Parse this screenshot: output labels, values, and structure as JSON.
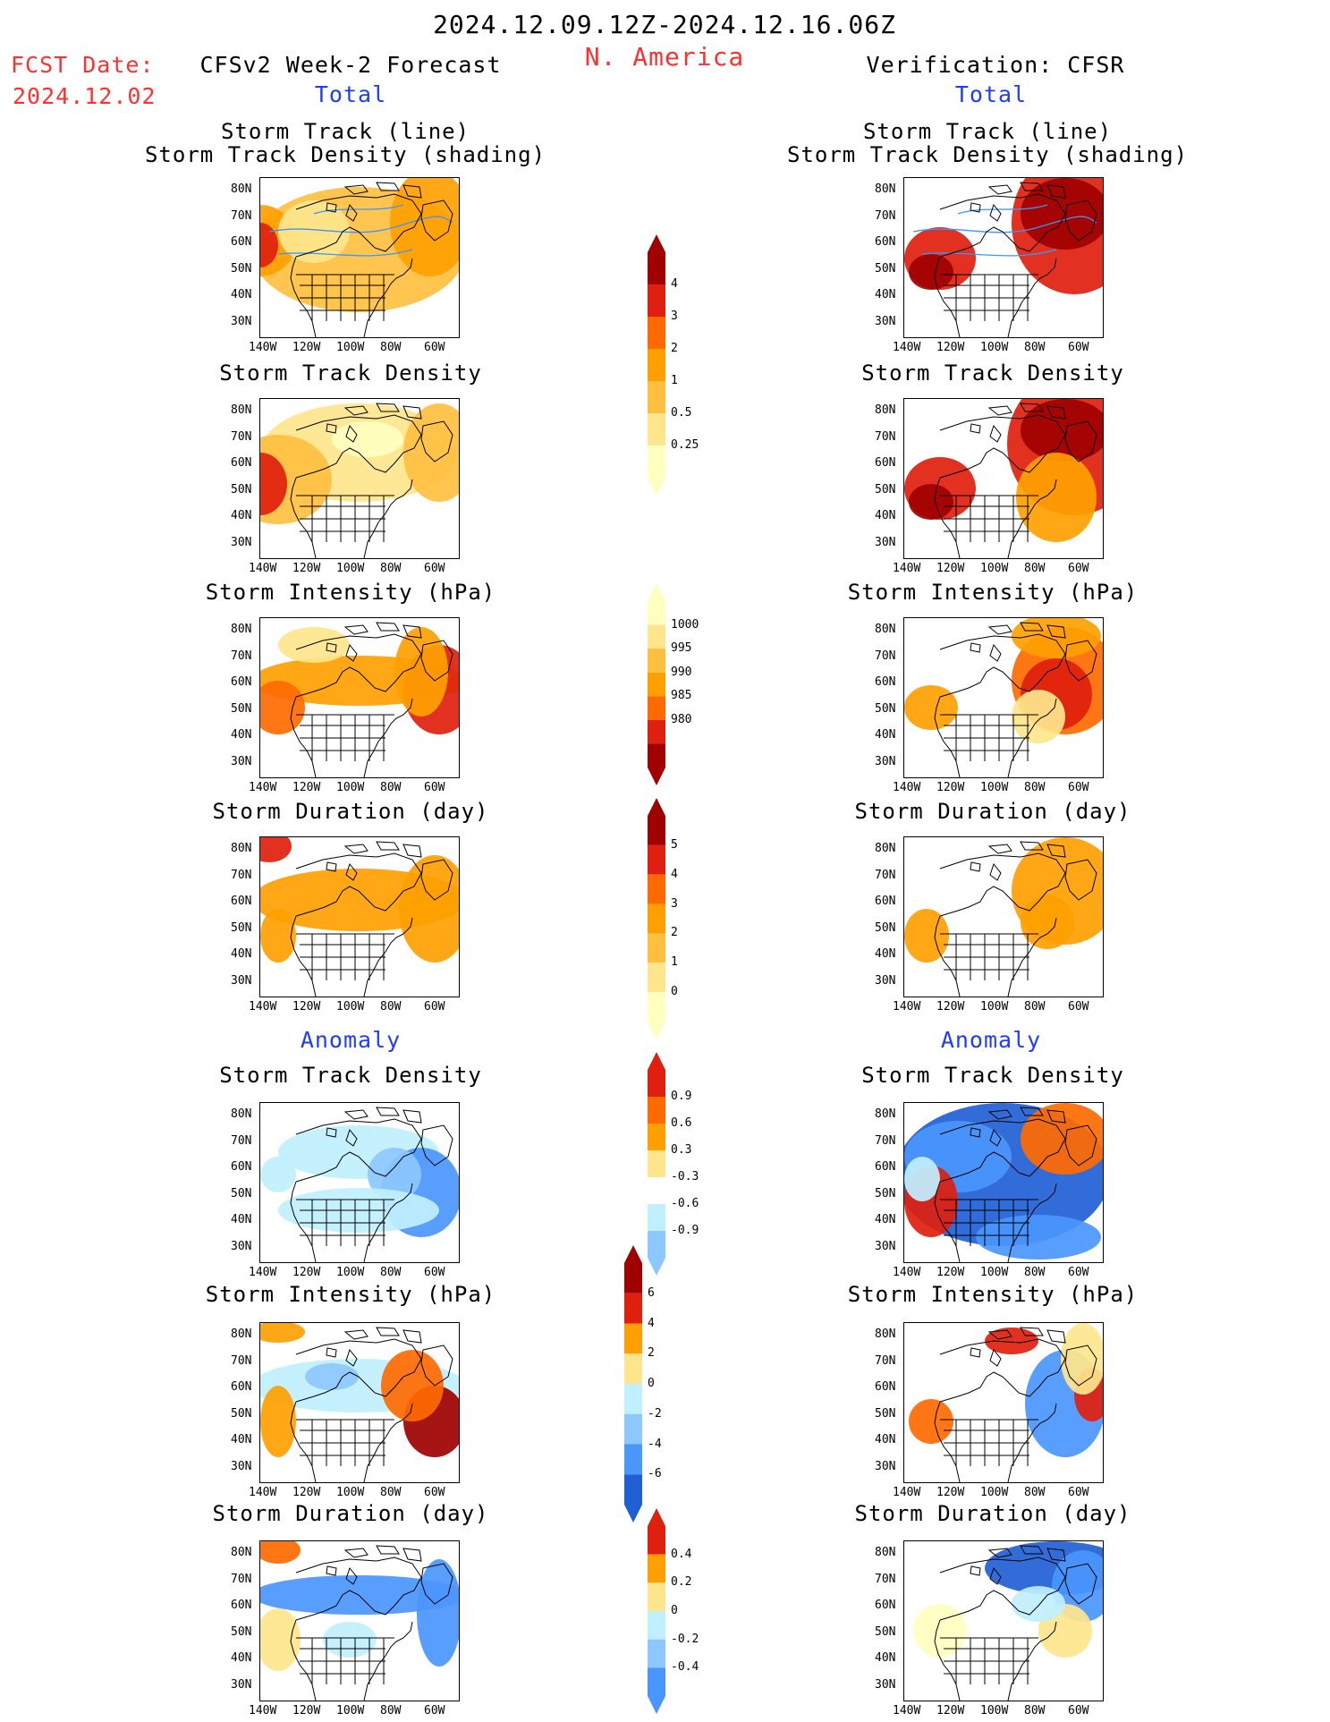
{
  "header": {
    "period": "2024.12.09.12Z-2024.12.16.06Z",
    "region": "N. America",
    "fcst_label": "FCST Date:",
    "fcst_date": "2024.12.02",
    "left_title": "CFSv2 Week-2 Forecast",
    "right_title": "Verification: CFSR",
    "total_label": "Total",
    "anomaly_label": "Anomaly"
  },
  "panel_titles": {
    "track_line": "Storm Track (line)",
    "track_shading": "Storm Track Density (shading)",
    "density": "Storm Track Density",
    "intensity": "Storm Intensity (hPa)",
    "duration": "Storm Duration (day)"
  },
  "axes": {
    "lat": [
      "80N",
      "70N",
      "60N",
      "50N",
      "40N",
      "30N"
    ],
    "lon": [
      "140W",
      "120W",
      "100W",
      "80W",
      "60W"
    ]
  },
  "colorbars": {
    "density_total": [
      "4",
      "3",
      "2",
      "1",
      "0.5",
      "0.25"
    ],
    "intensity_total": [
      "1000",
      "995",
      "990",
      "985",
      "980"
    ],
    "duration_total": [
      "5",
      "4",
      "3",
      "2",
      "1",
      "0"
    ],
    "density_anom": [
      "0.9",
      "0.6",
      "0.3",
      "-0.3",
      "-0.6",
      "-0.9"
    ],
    "intensity_anom": [
      "6",
      "4",
      "2",
      "0",
      "-2",
      "-4",
      "-6"
    ],
    "duration_anom": [
      "0.4",
      "0.2",
      "0",
      "-0.2",
      "-0.4"
    ]
  },
  "colors": {
    "yellow_light": "#ffffc0",
    "yellow": "#ffe68c",
    "orange_light": "#ffc040",
    "orange": "#ffa000",
    "orange_dark": "#ff6a00",
    "red": "#e0200e",
    "dark_red": "#a00000",
    "blue_light": "#c0f0ff",
    "blue_mid": "#8cc8ff",
    "blue": "#4a96ff",
    "blue_dark": "#1f5fd6",
    "track_line": "#3399ff"
  }
}
